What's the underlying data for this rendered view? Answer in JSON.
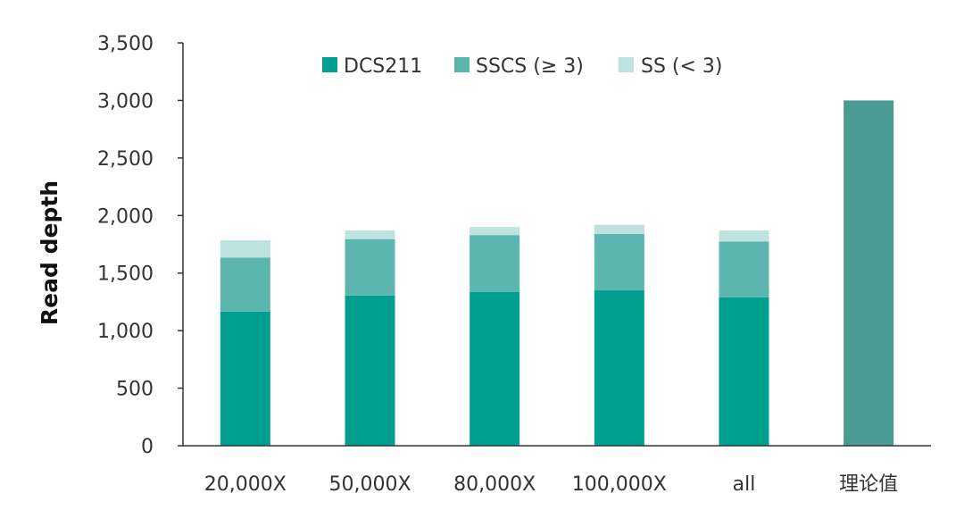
{
  "chart_data": {
    "type": "bar",
    "stacked": true,
    "categories": [
      "20,000X",
      "50,000X",
      "80,000X",
      "100,000X",
      "all",
      "理论值"
    ],
    "series": [
      {
        "name": "DCS211",
        "color": "#009f8f",
        "values": [
          1165,
          1305,
          1335,
          1350,
          1290,
          null
        ]
      },
      {
        "name": "SSCS (≥ 3)",
        "color": "#5cb5ae",
        "values": [
          470,
          490,
          495,
          490,
          485,
          null
        ]
      },
      {
        "name": "SS (< 3)",
        "color": "#bee2df",
        "values": [
          150,
          75,
          70,
          80,
          95,
          null
        ]
      },
      {
        "color": "#4a9b94",
        "values": [
          null,
          null,
          null,
          null,
          null,
          3000
        ]
      }
    ],
    "ylabel": "Read depth",
    "ylim": [
      0,
      3500
    ],
    "yticks": [
      0,
      500,
      1000,
      1500,
      2000,
      2500,
      3000,
      3500
    ],
    "ytick_labels": [
      "0",
      "500",
      "1,000",
      "1,500",
      "2,000",
      "2,500",
      "3,000",
      "3,500"
    ],
    "legend": "top",
    "grid": false
  }
}
